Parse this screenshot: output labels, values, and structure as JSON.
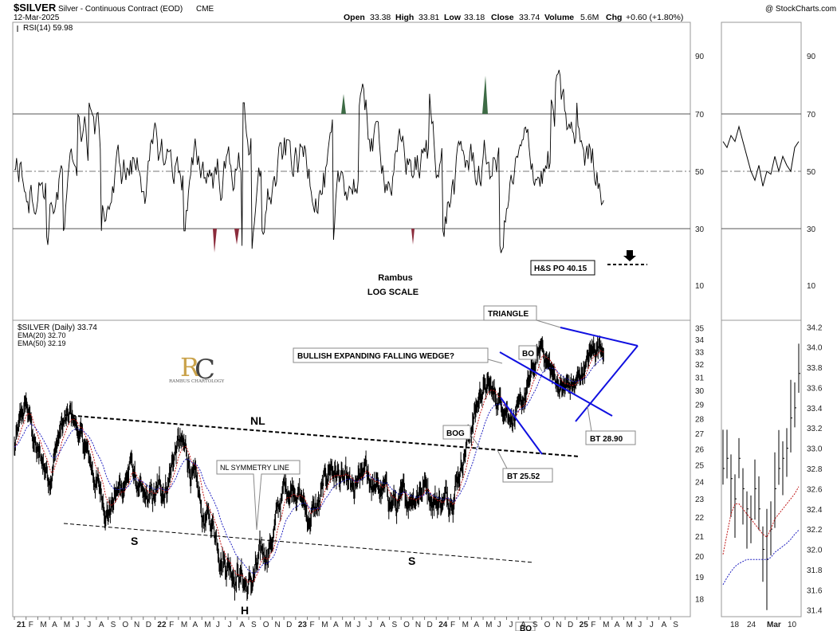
{
  "header": {
    "symbol": "$SILVER",
    "description": "Silver - Continuous Contract (EOD)",
    "exchange": "CME",
    "date": "12-Mar-2025",
    "ohlc": {
      "open_label": "Open",
      "open": "33.38",
      "high_label": "High",
      "high": "33.81",
      "low_label": "Low",
      "low": "33.18",
      "close_label": "Close",
      "close": "33.74",
      "volume_label": "Volume",
      "volume": "5.6M",
      "chg_label": "Chg",
      "chg": "+0.60 (+1.80%)"
    },
    "watermark": "@ StockCharts.com"
  },
  "rsi_panel": {
    "legend": "RSI(14) 59.98",
    "annotation_line1": "Rambus",
    "annotation_line2": "LOG SCALE",
    "po_box": "H&S PO 40.15"
  },
  "price_panel": {
    "legend": "$SILVER (Daily) 33.74",
    "ema20": "EMA(20) 32.70",
    "ema50": "EMA(50) 32.19",
    "logo_text": "RAMBUS CHARTOLOGY",
    "annotations": {
      "triangle": "TRIANGLE",
      "wedge": "BULLISH EXPANDING FALLING WEDGE?",
      "bo": "BO",
      "bog": "BOG",
      "bt1": "BT 25.52",
      "bt2": "BT 28.90",
      "nl": "NL",
      "nl_sym": "NL SYMMETRY LINE",
      "s_left": "S",
      "h": "H",
      "s_right": "S",
      "bo_bottom": "BO"
    }
  },
  "chart_data": [
    {
      "type": "line",
      "title": "RSI(14)",
      "series": [
        {
          "name": "RSI(14)",
          "last": 59.98
        }
      ],
      "y_ticks": [
        10,
        30,
        50,
        70,
        90
      ],
      "ylim": [
        0,
        100
      ],
      "reference_lines": [
        30,
        50,
        70
      ],
      "x_ticks": [
        "21",
        "F",
        "M",
        "A",
        "M",
        "J",
        "J",
        "A",
        "S",
        "O",
        "N",
        "D",
        "22",
        "F",
        "M",
        "A",
        "M",
        "J",
        "J",
        "A",
        "S",
        "O",
        "N",
        "D",
        "23",
        "F",
        "M",
        "A",
        "M",
        "J",
        "J",
        "A",
        "S",
        "O",
        "N",
        "D",
        "24",
        "F",
        "M",
        "A",
        "M",
        "J",
        "J",
        "A",
        "S",
        "O",
        "N",
        "D",
        "25",
        "F",
        "M",
        "A",
        "M",
        "J",
        "J",
        "A",
        "S"
      ]
    },
    {
      "type": "line",
      "title": "$SILVER (Daily)",
      "series": [
        {
          "name": "$SILVER",
          "last": 33.74
        },
        {
          "name": "EMA(20)",
          "last": 32.7
        },
        {
          "name": "EMA(50)",
          "last": 32.19
        }
      ],
      "y_ticks": [
        18,
        19,
        20,
        21,
        22,
        23,
        24,
        25,
        26,
        27,
        28,
        29,
        30,
        31,
        32,
        33,
        34,
        35
      ],
      "scale": "log",
      "ylim": [
        17.3,
        35.5
      ],
      "path_points": [
        [
          "2021-01",
          26
        ],
        [
          "2021-02",
          29
        ],
        [
          "2021-03",
          25.5
        ],
        [
          "2021-04",
          24.5
        ],
        [
          "2021-05",
          27.5
        ],
        [
          "2021-06",
          28
        ],
        [
          "2021-07",
          26
        ],
        [
          "2021-08",
          24
        ],
        [
          "2021-09",
          22.5
        ],
        [
          "2021-10",
          23.5
        ],
        [
          "2021-11",
          25
        ],
        [
          "2021-12",
          22.5
        ],
        [
          "2022-01",
          23
        ],
        [
          "2022-02",
          24
        ],
        [
          "2022-03",
          26.5
        ],
        [
          "2022-04",
          25
        ],
        [
          "2022-05",
          22
        ],
        [
          "2022-06",
          21.5
        ],
        [
          "2022-07",
          20
        ],
        [
          "2022-08",
          19.5
        ],
        [
          "2022-09",
          18.5
        ],
        [
          "2022-10",
          19.5
        ],
        [
          "2022-11",
          21
        ],
        [
          "2022-12",
          23.5
        ],
        [
          "2023-01",
          24
        ],
        [
          "2023-02",
          22
        ],
        [
          "2023-03",
          22.5
        ],
        [
          "2023-04",
          25
        ],
        [
          "2023-05",
          24
        ],
        [
          "2023-06",
          23
        ],
        [
          "2023-07",
          24.5
        ],
        [
          "2023-08",
          23.5
        ],
        [
          "2023-09",
          23
        ],
        [
          "2023-10",
          22.5
        ],
        [
          "2023-11",
          23.5
        ],
        [
          "2023-12",
          24
        ],
        [
          "2024-01",
          23
        ],
        [
          "2024-02",
          23
        ],
        [
          "2024-03",
          25
        ],
        [
          "2024-04",
          27.5
        ],
        [
          "2024-05",
          30.5
        ],
        [
          "2024-06",
          29.5
        ],
        [
          "2024-07",
          29
        ],
        [
          "2024-08",
          28
        ],
        [
          "2024-09",
          30.5
        ],
        [
          "2024-10",
          33.5
        ],
        [
          "2024-11",
          31
        ],
        [
          "2024-12",
          30
        ],
        [
          "2025-01",
          30.5
        ],
        [
          "2025-02",
          32.5
        ],
        [
          "2025-03",
          33.74
        ]
      ]
    },
    {
      "type": "line",
      "title": "RSI(14) detail",
      "y_ticks": [
        10,
        30,
        50,
        70,
        90
      ]
    },
    {
      "type": "bar",
      "title": "$SILVER detail (OHLC)",
      "x_ticks": [
        "18",
        "24",
        "Mar",
        "10"
      ],
      "y_ticks": [
        31.4,
        31.6,
        31.8,
        32.0,
        32.2,
        32.4,
        32.6,
        32.8,
        33.0,
        33.2,
        33.4,
        33.6,
        33.8,
        34.0,
        34.2
      ],
      "ylim": [
        31.35,
        34.25
      ]
    }
  ]
}
